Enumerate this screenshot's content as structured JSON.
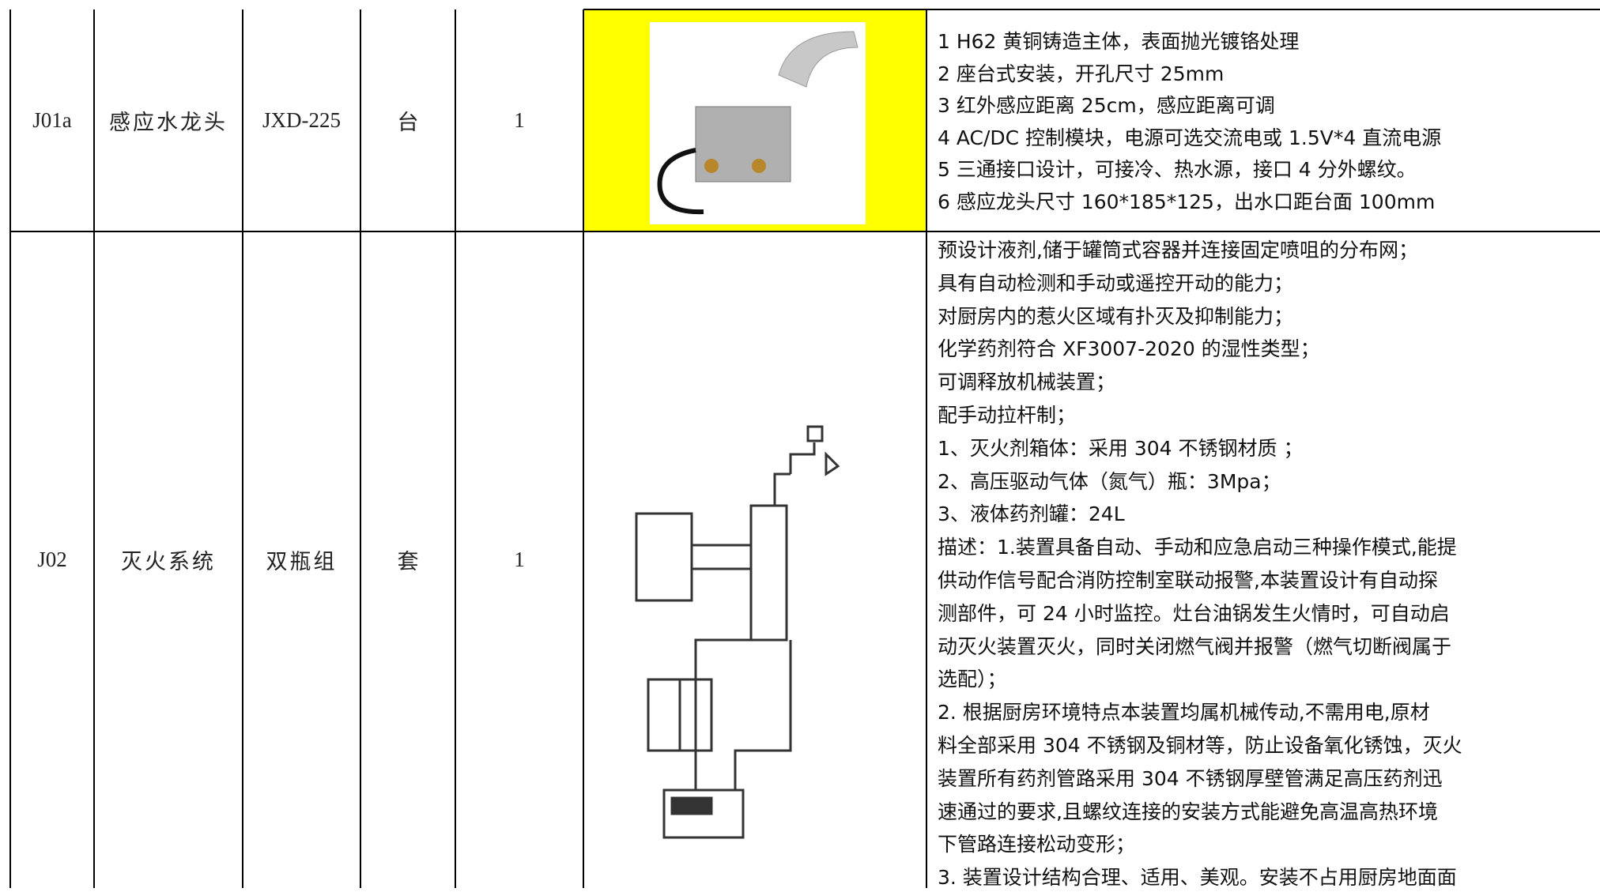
{
  "table": {
    "rows": [
      {
        "code": "J01a",
        "name": "感应水龙头",
        "model": "JXD-225",
        "unit": "台",
        "qty": "1",
        "description": [
          "1  H62 黄铜铸造主体，表面抛光镀铬处理",
          "2  座台式安装，开孔尺寸 25mm",
          "3  红外感应距离 25cm，感应距离可调",
          "4  AC/DC 控制模块，电源可选交流电或 1.5V*4 直流电源",
          "5  三通接口设计，可接冷、热水源，接口 4 分外螺纹。",
          "6  感应龙头尺寸 160*185*125，出水口距台面 100mm"
        ]
      },
      {
        "code": "J02",
        "name": "灭火系统",
        "model": "双瓶组",
        "unit": "套",
        "qty": "1",
        "description": [
          "预设计液剂,储于罐筒式容器并连接固定喷咀的分布网；",
          "具有自动检测和手动或遥控开动的能力；",
          "对厨房内的惹火区域有扑灭及抑制能力；",
          "化学药剂符合 XF3007-2020 的湿性类型；",
          "可调释放机械装置；",
          "配手动拉杆制；",
          "1、灭火剂箱体：采用 304 不锈钢材质 ；",
          "2、高压驱动气体（氮气）瓶：3Mpa；",
          " 3、液体药剂罐：24L",
          "描述：1.装置具备自动、手动和应急启动三种操作模式,能提",
          "供动作信号配合消防控制室联动报警,本装置设计有自动探",
          "测部件，可 24 小时监控。灶台油锅发生火情时，可自动启",
          "动灭火装置灭火，同时关闭燃气阀并报警（燃气切断阀属于",
          "选配）；",
          " 2. 根据厨房环境特点本装置均属机械传动,不需用电,原材",
          "料全部采用 304 不锈钢及铜材等，防止设备氧化锈蚀，灭火",
          "装置所有药剂管路采用 304 不锈钢厚壁管满足高压药剂迅",
          "速通过的要求,且螺纹连接的安装方式能避免高温高热环境",
          "下管路连接松动变形；",
          "3. 装置设计结构合理、适用、美观。安装不占用厨房地面面"
        ]
      }
    ]
  }
}
